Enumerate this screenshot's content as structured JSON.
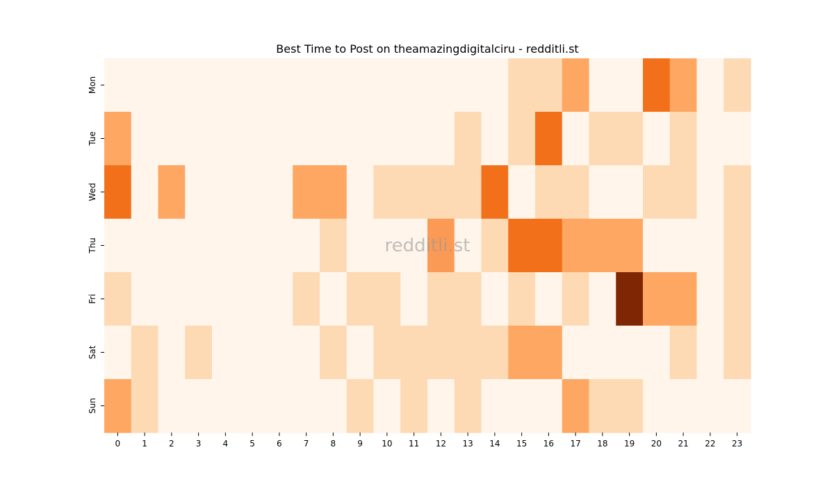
{
  "chart_data": {
    "type": "heatmap",
    "title": "Best Time to Post on theamazingdigitalciru - redditli.st",
    "watermark": "redditli.st",
    "xlabel": "",
    "ylabel": "",
    "x": [
      "0",
      "1",
      "2",
      "3",
      "4",
      "5",
      "6",
      "7",
      "8",
      "9",
      "10",
      "11",
      "12",
      "13",
      "14",
      "15",
      "16",
      "17",
      "18",
      "19",
      "20",
      "21",
      "22",
      "23"
    ],
    "y": [
      "Mon",
      "Tue",
      "Wed",
      "Thu",
      "Fri",
      "Sat",
      "Sun"
    ],
    "values": [
      [
        0,
        0,
        0,
        0,
        0,
        0,
        0,
        0,
        0,
        0,
        0,
        0,
        0,
        0,
        0,
        1,
        1,
        2,
        0,
        0,
        4,
        2,
        0,
        1
      ],
      [
        2,
        0,
        0,
        0,
        0,
        0,
        0,
        0,
        0,
        0,
        0,
        0,
        0,
        1,
        0,
        1,
        4,
        0,
        1,
        1,
        0,
        1,
        0,
        0
      ],
      [
        4,
        0,
        2,
        0,
        0,
        0,
        0,
        2,
        2,
        0,
        1,
        1,
        1,
        1,
        4,
        0,
        1,
        1,
        0,
        0,
        1,
        1,
        0,
        1
      ],
      [
        0,
        0,
        0,
        0,
        0,
        0,
        0,
        0,
        1,
        0,
        0,
        0,
        3,
        0,
        1,
        4,
        4,
        2,
        2,
        2,
        0,
        0,
        0,
        1
      ],
      [
        1,
        0,
        0,
        0,
        0,
        0,
        0,
        1,
        0,
        1,
        1,
        0,
        1,
        1,
        0,
        1,
        0,
        1,
        0,
        6,
        2,
        2,
        0,
        1
      ],
      [
        0,
        1,
        0,
        1,
        0,
        0,
        0,
        0,
        1,
        0,
        1,
        1,
        1,
        1,
        1,
        2,
        2,
        0,
        0,
        0,
        0,
        1,
        0,
        1
      ],
      [
        2,
        1,
        0,
        0,
        0,
        0,
        0,
        0,
        0,
        1,
        0,
        1,
        0,
        1,
        0,
        0,
        0,
        2,
        1,
        1,
        0,
        0,
        0,
        0
      ]
    ],
    "value_range": [
      0,
      6
    ],
    "colormap": "Oranges",
    "colors": {
      "level_0": "#fff5eb",
      "level_1": "#fdd9b4",
      "level_2": "#fda762",
      "level_3": "#fb9a54",
      "level_4": "#f3701b",
      "level_6": "#7f2704"
    },
    "grid": false,
    "legend": "none"
  }
}
